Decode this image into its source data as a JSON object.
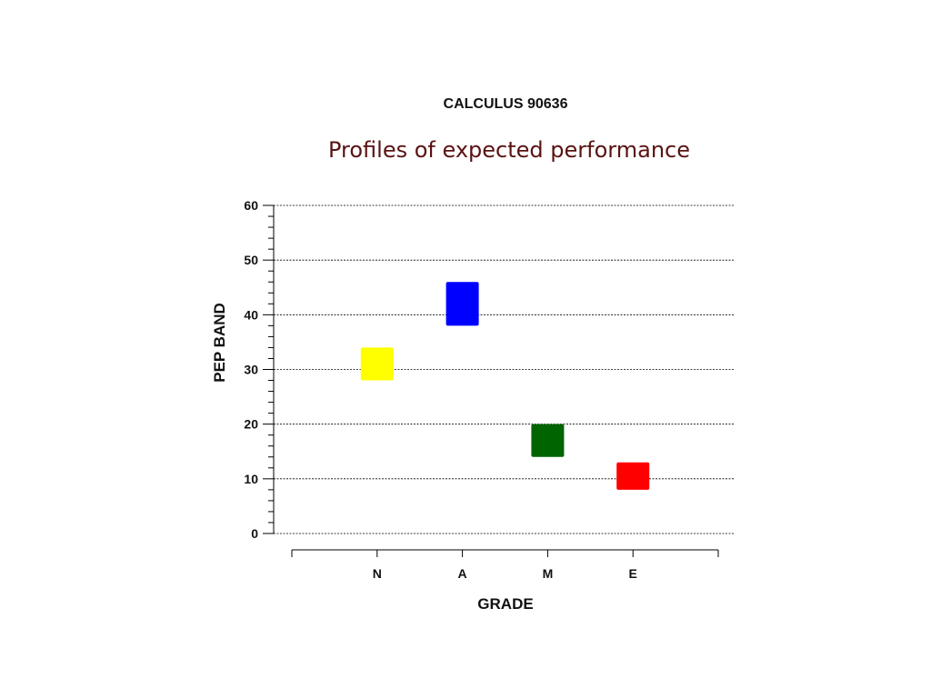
{
  "chart_data": {
    "type": "box",
    "title": "CALCULUS 90636",
    "subtitle": "Profiles of expected performance",
    "xlabel": "GRADE",
    "ylabel": "PEP BAND",
    "categories": [
      "N",
      "A",
      "M",
      "E"
    ],
    "ranges": [
      {
        "category": "N",
        "low": 28,
        "high": 34,
        "color": "#ffff00"
      },
      {
        "category": "A",
        "low": 38,
        "high": 46,
        "color": "#0000ff"
      },
      {
        "category": "M",
        "low": 14,
        "high": 20,
        "color": "#006400"
      },
      {
        "category": "E",
        "low": 8,
        "high": 13,
        "color": "#ff0000"
      }
    ],
    "ylim": [
      0,
      60
    ],
    "yticks": [
      "0",
      "10",
      "20",
      "30",
      "40",
      "50",
      "60"
    ],
    "grid": true,
    "legend": "none"
  }
}
